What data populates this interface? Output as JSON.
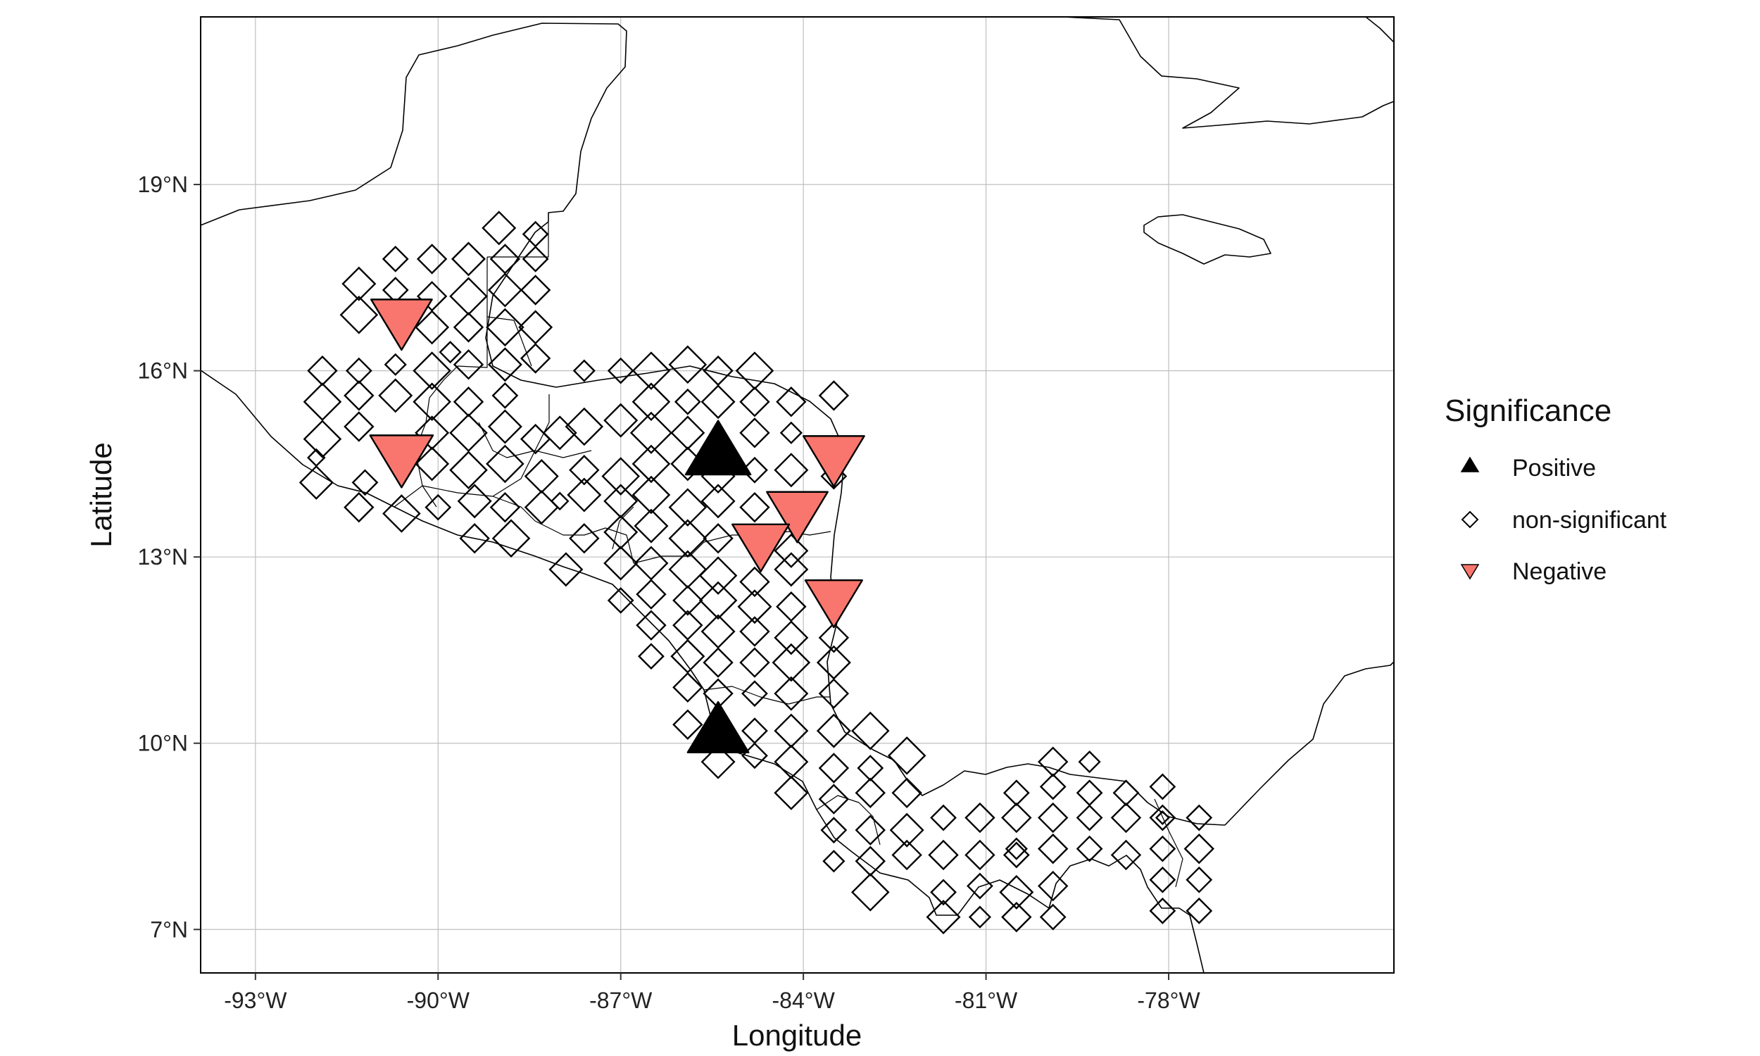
{
  "chart_data": {
    "type": "scatter",
    "title": "",
    "xlabel": "Longitude",
    "ylabel": "Latitude",
    "xlim": [
      -93.9,
      -74.3
    ],
    "ylim": [
      6.3,
      21.7
    ],
    "x_ticks": [
      -93,
      -90,
      -87,
      -84,
      -81,
      -78
    ],
    "x_tick_labels": [
      "-93°W",
      "-90°W",
      "-87°W",
      "-84°W",
      "-81°W",
      "-78°W"
    ],
    "y_ticks": [
      7,
      10,
      13,
      16,
      19
    ],
    "y_tick_labels": [
      "7°N",
      "10°N",
      "13°N",
      "16°N",
      "19°N"
    ],
    "grid": true,
    "legend": {
      "title": "Significance",
      "placement": "right",
      "entries": [
        {
          "label": "Positive",
          "shape": "triangle-up",
          "color": "#000000"
        },
        {
          "label": "non-significant",
          "shape": "diamond-open",
          "color": "#000000"
        },
        {
          "label": "Negative",
          "shape": "triangle-down",
          "color": "#f8766d"
        }
      ]
    },
    "colors": {
      "positive": "#000000",
      "negative": "#f8766d",
      "nonsig": "#000000"
    },
    "significant_points": [
      {
        "lon": -85.4,
        "lat": 14.7,
        "class": "Positive",
        "size": 0.95
      },
      {
        "lon": -85.4,
        "lat": 10.2,
        "class": "Positive",
        "size": 0.85
      },
      {
        "lon": -90.6,
        "lat": 16.8,
        "class": "Negative",
        "size": 0.85
      },
      {
        "lon": -90.6,
        "lat": 14.6,
        "class": "Negative",
        "size": 0.9
      },
      {
        "lon": -83.5,
        "lat": 14.6,
        "class": "Negative",
        "size": 0.85
      },
      {
        "lon": -84.1,
        "lat": 13.7,
        "class": "Negative",
        "size": 0.85
      },
      {
        "lon": -84.7,
        "lat": 13.2,
        "class": "Negative",
        "size": 0.75
      },
      {
        "lon": -83.5,
        "lat": 12.3,
        "class": "Negative",
        "size": 0.75
      }
    ],
    "nonsignificant_points": [
      [
        -89.0,
        18.3,
        0.6
      ],
      [
        -88.4,
        18.2,
        0.4
      ],
      [
        -91.3,
        17.4,
        0.6
      ],
      [
        -90.7,
        17.8,
        0.4
      ],
      [
        -90.1,
        17.8,
        0.5
      ],
      [
        -89.5,
        17.8,
        0.6
      ],
      [
        -88.9,
        17.8,
        0.5
      ],
      [
        -88.4,
        17.8,
        0.4
      ],
      [
        -91.3,
        16.9,
        0.7
      ],
      [
        -90.7,
        17.3,
        0.4
      ],
      [
        -90.1,
        17.2,
        0.5
      ],
      [
        -89.5,
        17.2,
        0.7
      ],
      [
        -88.9,
        17.3,
        0.6
      ],
      [
        -88.4,
        17.3,
        0.5
      ],
      [
        -90.1,
        16.7,
        0.6
      ],
      [
        -89.5,
        16.7,
        0.5
      ],
      [
        -88.9,
        16.7,
        0.7
      ],
      [
        -88.4,
        16.7,
        0.6
      ],
      [
        -89.8,
        16.3,
        0.3
      ],
      [
        -91.9,
        16.0,
        0.5
      ],
      [
        -91.3,
        16.0,
        0.4
      ],
      [
        -90.7,
        16.1,
        0.3
      ],
      [
        -90.1,
        16.0,
        0.7
      ],
      [
        -89.5,
        16.1,
        0.5
      ],
      [
        -88.9,
        16.1,
        0.6
      ],
      [
        -88.4,
        16.2,
        0.5
      ],
      [
        -91.9,
        15.5,
        0.7
      ],
      [
        -91.3,
        15.6,
        0.5
      ],
      [
        -90.7,
        15.6,
        0.6
      ],
      [
        -90.1,
        15.5,
        0.7
      ],
      [
        -89.5,
        15.5,
        0.5
      ],
      [
        -88.9,
        15.6,
        0.4
      ],
      [
        -91.9,
        14.9,
        0.7
      ],
      [
        -91.3,
        15.1,
        0.5
      ],
      [
        -90.1,
        15.0,
        0.6
      ],
      [
        -89.5,
        15.0,
        0.7
      ],
      [
        -88.9,
        15.1,
        0.6
      ],
      [
        -88.4,
        14.9,
        0.5
      ],
      [
        -92.0,
        14.6,
        0.2
      ],
      [
        -91.2,
        14.2,
        0.4
      ],
      [
        -90.1,
        14.5,
        0.6
      ],
      [
        -89.5,
        14.4,
        0.7
      ],
      [
        -88.9,
        14.5,
        0.7
      ],
      [
        -88.3,
        14.3,
        0.6
      ],
      [
        -92.0,
        14.2,
        0.6
      ],
      [
        -91.3,
        13.8,
        0.5
      ],
      [
        -90.6,
        13.7,
        0.7
      ],
      [
        -90.0,
        13.8,
        0.4
      ],
      [
        -89.4,
        13.9,
        0.6
      ],
      [
        -88.9,
        13.8,
        0.5
      ],
      [
        -88.3,
        13.8,
        0.6
      ],
      [
        -89.4,
        13.3,
        0.5
      ],
      [
        -88.8,
        13.3,
        0.7
      ],
      [
        -87.6,
        16.0,
        0.3
      ],
      [
        -87.0,
        16.0,
        0.4
      ],
      [
        -86.5,
        16.0,
        0.7
      ],
      [
        -85.9,
        16.1,
        0.7
      ],
      [
        -85.4,
        16.0,
        0.5
      ],
      [
        -84.8,
        16.0,
        0.7
      ],
      [
        -86.5,
        15.5,
        0.7
      ],
      [
        -85.9,
        15.5,
        0.4
      ],
      [
        -85.4,
        15.5,
        0.6
      ],
      [
        -84.8,
        15.5,
        0.5
      ],
      [
        -84.2,
        15.5,
        0.5
      ],
      [
        -83.5,
        15.6,
        0.5
      ],
      [
        -88.0,
        15.0,
        0.6
      ],
      [
        -87.6,
        15.1,
        0.7
      ],
      [
        -87.0,
        15.2,
        0.6
      ],
      [
        -86.5,
        15.0,
        0.8
      ],
      [
        -85.9,
        15.0,
        0.6
      ],
      [
        -84.8,
        15.0,
        0.5
      ],
      [
        -84.2,
        15.0,
        0.3
      ],
      [
        -87.6,
        14.4,
        0.5
      ],
      [
        -87.0,
        14.3,
        0.7
      ],
      [
        -86.5,
        14.5,
        0.7
      ],
      [
        -85.9,
        14.5,
        0.6
      ],
      [
        -85.4,
        14.3,
        0.6
      ],
      [
        -84.8,
        14.4,
        0.4
      ],
      [
        -84.2,
        14.4,
        0.6
      ],
      [
        -83.5,
        14.3,
        0.4
      ],
      [
        -88.0,
        13.9,
        0.2
      ],
      [
        -87.6,
        14.0,
        0.6
      ],
      [
        -87.0,
        13.9,
        0.6
      ],
      [
        -86.5,
        14.0,
        0.7
      ],
      [
        -85.9,
        13.8,
        0.7
      ],
      [
        -85.4,
        13.9,
        0.6
      ],
      [
        -84.8,
        13.8,
        0.5
      ],
      [
        -87.6,
        13.3,
        0.5
      ],
      [
        -87.0,
        13.4,
        0.6
      ],
      [
        -86.5,
        13.5,
        0.6
      ],
      [
        -85.9,
        13.3,
        0.7
      ],
      [
        -85.4,
        13.3,
        0.5
      ],
      [
        -84.2,
        13.1,
        0.6
      ],
      [
        -87.9,
        12.8,
        0.6
      ],
      [
        -87.0,
        12.9,
        0.6
      ],
      [
        -86.5,
        12.9,
        0.6
      ],
      [
        -85.9,
        12.8,
        0.7
      ],
      [
        -85.4,
        12.7,
        0.7
      ],
      [
        -84.8,
        12.6,
        0.5
      ],
      [
        -84.2,
        12.8,
        0.6
      ],
      [
        -87.0,
        12.3,
        0.4
      ],
      [
        -86.5,
        12.4,
        0.5
      ],
      [
        -85.9,
        12.3,
        0.5
      ],
      [
        -85.4,
        12.3,
        0.7
      ],
      [
        -84.8,
        12.2,
        0.6
      ],
      [
        -84.2,
        12.2,
        0.5
      ],
      [
        -86.5,
        11.9,
        0.5
      ],
      [
        -85.9,
        11.9,
        0.5
      ],
      [
        -85.4,
        11.8,
        0.6
      ],
      [
        -84.8,
        11.8,
        0.5
      ],
      [
        -84.2,
        11.7,
        0.6
      ],
      [
        -83.5,
        11.7,
        0.5
      ],
      [
        -86.5,
        11.4,
        0.4
      ],
      [
        -85.9,
        11.4,
        0.6
      ],
      [
        -85.4,
        11.3,
        0.5
      ],
      [
        -84.8,
        11.3,
        0.5
      ],
      [
        -84.2,
        11.3,
        0.7
      ],
      [
        -83.5,
        11.3,
        0.6
      ],
      [
        -85.9,
        10.9,
        0.5
      ],
      [
        -85.4,
        10.8,
        0.5
      ],
      [
        -84.8,
        10.8,
        0.4
      ],
      [
        -84.2,
        10.8,
        0.6
      ],
      [
        -83.5,
        10.8,
        0.5
      ],
      [
        -85.9,
        10.3,
        0.5
      ],
      [
        -84.8,
        10.2,
        0.4
      ],
      [
        -84.2,
        10.2,
        0.6
      ],
      [
        -83.5,
        10.2,
        0.6
      ],
      [
        -82.9,
        10.2,
        0.7
      ],
      [
        -85.4,
        9.7,
        0.6
      ],
      [
        -84.8,
        9.8,
        0.4
      ],
      [
        -84.2,
        9.7,
        0.6
      ],
      [
        -83.5,
        9.6,
        0.5
      ],
      [
        -82.9,
        9.6,
        0.4
      ],
      [
        -82.3,
        9.8,
        0.7
      ],
      [
        -84.2,
        9.2,
        0.6
      ],
      [
        -83.5,
        9.1,
        0.5
      ],
      [
        -82.9,
        9.2,
        0.5
      ],
      [
        -82.3,
        9.2,
        0.5
      ],
      [
        -83.5,
        8.6,
        0.4
      ],
      [
        -82.9,
        8.6,
        0.5
      ],
      [
        -82.3,
        8.6,
        0.6
      ],
      [
        -81.7,
        8.8,
        0.4
      ],
      [
        -81.1,
        8.8,
        0.5
      ],
      [
        -80.5,
        8.8,
        0.5
      ],
      [
        -79.9,
        8.8,
        0.5
      ],
      [
        -79.3,
        8.8,
        0.4
      ],
      [
        -78.7,
        8.8,
        0.5
      ],
      [
        -78.1,
        8.8,
        0.4
      ],
      [
        -77.5,
        8.8,
        0.4
      ],
      [
        -83.5,
        8.1,
        0.3
      ],
      [
        -82.9,
        8.1,
        0.5
      ],
      [
        -82.3,
        8.2,
        0.5
      ],
      [
        -81.7,
        8.2,
        0.5
      ],
      [
        -81.1,
        8.2,
        0.5
      ],
      [
        -80.5,
        8.2,
        0.4
      ],
      [
        -79.9,
        8.3,
        0.5
      ],
      [
        -79.3,
        8.3,
        0.4
      ],
      [
        -78.7,
        8.2,
        0.5
      ],
      [
        -78.1,
        8.3,
        0.4
      ],
      [
        -77.5,
        8.3,
        0.5
      ],
      [
        -82.9,
        7.6,
        0.7
      ],
      [
        -81.7,
        7.6,
        0.4
      ],
      [
        -81.1,
        7.7,
        0.4
      ],
      [
        -80.5,
        7.6,
        0.6
      ],
      [
        -79.9,
        7.7,
        0.5
      ],
      [
        -78.1,
        7.8,
        0.4
      ],
      [
        -77.5,
        7.8,
        0.4
      ],
      [
        -81.7,
        7.2,
        0.6
      ],
      [
        -81.1,
        7.2,
        0.3
      ],
      [
        -80.5,
        7.2,
        0.5
      ],
      [
        -79.9,
        7.2,
        0.4
      ],
      [
        -78.1,
        7.3,
        0.4
      ],
      [
        -77.5,
        7.3,
        0.4
      ],
      [
        -80.5,
        9.2,
        0.4
      ],
      [
        -79.9,
        9.3,
        0.4
      ],
      [
        -79.3,
        9.2,
        0.4
      ],
      [
        -78.7,
        9.2,
        0.4
      ],
      [
        -78.1,
        9.3,
        0.4
      ],
      [
        -79.9,
        9.7,
        0.5
      ],
      [
        -79.3,
        9.7,
        0.3
      ],
      [
        -80.5,
        8.3,
        0.3
      ],
      [
        -78.1,
        8.8,
        0.1
      ]
    ]
  }
}
